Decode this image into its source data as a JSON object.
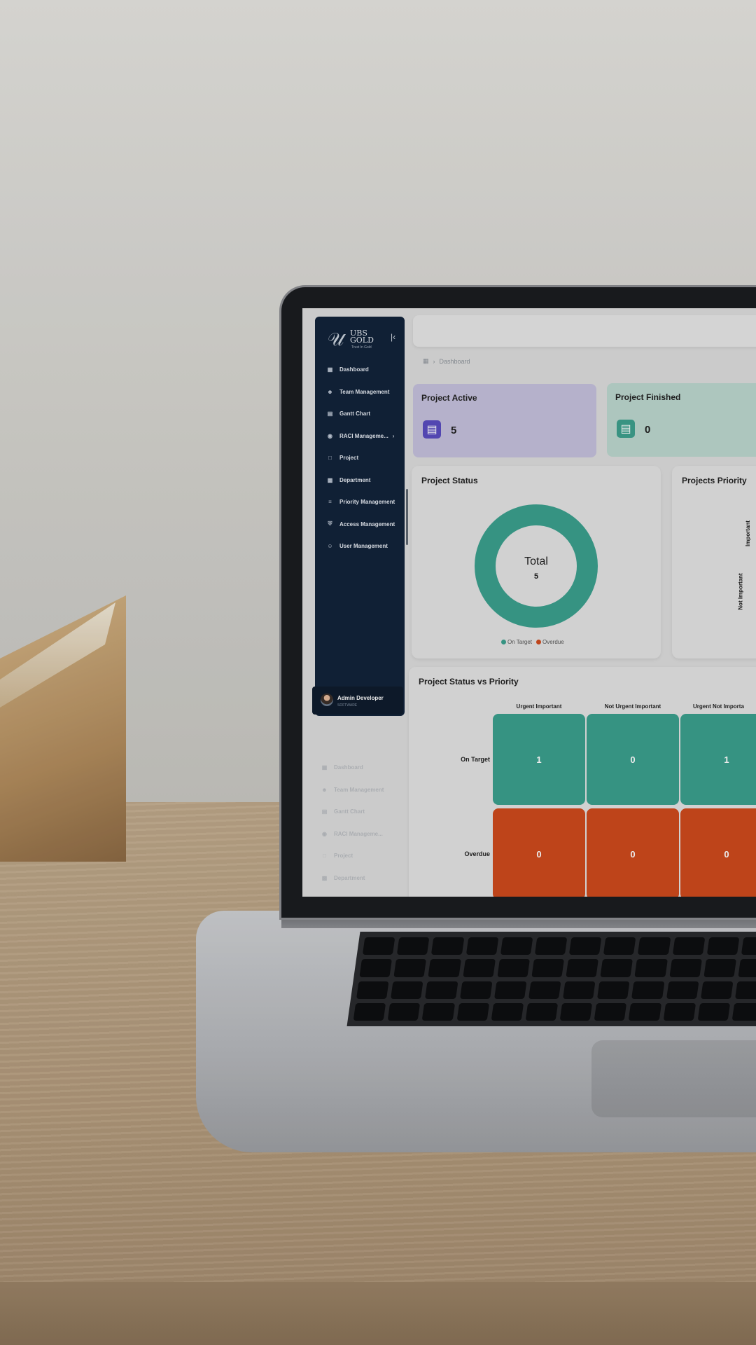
{
  "brand": {
    "logo_line1": "UBS",
    "logo_line2": "GOLD",
    "tagline": "Trust In Gold"
  },
  "sidebar": {
    "collapse_icon": "collapse-left-icon",
    "items": [
      {
        "label": "Dashboard",
        "icon": "dashboard-icon"
      },
      {
        "label": "Team Management",
        "icon": "team-icon"
      },
      {
        "label": "Gantt Chart",
        "icon": "gantt-icon"
      },
      {
        "label": "RACI Manageme...",
        "icon": "raci-icon"
      },
      {
        "label": "Project",
        "icon": "document-icon"
      },
      {
        "label": "Department",
        "icon": "building-icon"
      },
      {
        "label": "Priority Management",
        "icon": "priority-list-icon"
      },
      {
        "label": "Access Management",
        "icon": "shield-icon"
      },
      {
        "label": "User Management",
        "icon": "users-icon"
      }
    ],
    "ghost_items": [
      "Dashboard",
      "Team Management",
      "Gantt Chart",
      "RACI Manageme...",
      "Project",
      "Department"
    ]
  },
  "user": {
    "name": "Admin Developer",
    "role": "SOFTWARE"
  },
  "breadcrumb": {
    "current": "Dashboard"
  },
  "cards": {
    "active": {
      "title": "Project Active",
      "value": "5",
      "color": "#c5c0dd",
      "icon_color": "#5a4cc0"
    },
    "finished": {
      "title": "Project Finished",
      "value": "0",
      "color": "#bcd7cf",
      "icon_color": "#3ea08e"
    }
  },
  "project_status": {
    "title": "Project Status",
    "center_label": "Total",
    "center_value": "5",
    "legend": [
      {
        "label": "On Target",
        "color": "#3ba08e"
      },
      {
        "label": "Overdue",
        "color": "#cf4a1d"
      }
    ]
  },
  "priority_panel": {
    "title": "Projects Priority",
    "labels": [
      "Important",
      "Not Important"
    ]
  },
  "matrix": {
    "title": "Project Status vs Priority",
    "columns": [
      "Urgent Important",
      "Not Urgent Important",
      "Urgent Not Importa"
    ],
    "rows": [
      {
        "label": "On Target",
        "values": [
          "1",
          "0",
          "1"
        ],
        "color": "#3ba08e"
      },
      {
        "label": "Overdue",
        "values": [
          "0",
          "0",
          "0"
        ],
        "color": "#cf4a1d"
      }
    ]
  },
  "chart_data": {
    "type": "pie",
    "title": "Project Status",
    "categories": [
      "On Target",
      "Overdue"
    ],
    "values": [
      5,
      0
    ],
    "colors": [
      "#3ba08e",
      "#cf4a1d"
    ],
    "legend": "bottom"
  }
}
